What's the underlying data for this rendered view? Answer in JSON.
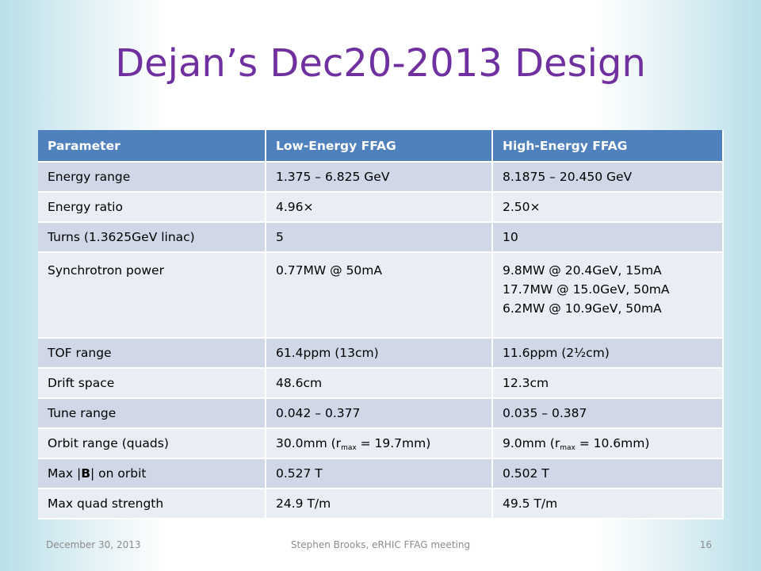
{
  "title": "Dejan’s Dec20-2013 Design",
  "table": {
    "headers": [
      "Parameter",
      "Low-Energy FFAG",
      "High-Energy FFAG"
    ],
    "rows": {
      "energy_range": {
        "param": "Energy range",
        "low": "1.375 – 6.825 GeV",
        "high": "8.1875 – 20.450 GeV"
      },
      "energy_ratio": {
        "param": "Energy ratio",
        "low": "4.96×",
        "high": "2.50×"
      },
      "turns": {
        "param": "Turns (1.3625GeV linac)",
        "low": "5",
        "high": "10"
      },
      "synchrotron_power": {
        "param": "Synchrotron power",
        "low": "0.77MW @ 50mA",
        "high": [
          "9.8MW @ 20.4GeV, 15mA",
          "17.7MW @ 15.0GeV, 50mA",
          "6.2MW @ 10.9GeV, 50mA"
        ]
      },
      "tof_range": {
        "param": "TOF range",
        "low": "61.4ppm (13cm)",
        "high": "11.6ppm (2½cm)"
      },
      "drift_space": {
        "param": "Drift space",
        "low": "48.6cm",
        "high": "12.3cm"
      },
      "tune_range": {
        "param": "Tune range",
        "low": "0.042 – 0.377",
        "high": "0.035 – 0.387"
      },
      "orbit_range": {
        "param": "Orbit range (quads)",
        "low": {
          "pre": "30.0mm (r",
          "sub": "max",
          "post": " = 19.7mm)"
        },
        "high": {
          "pre": "9.0mm (r",
          "sub": "max",
          "post": " = 10.6mm)"
        }
      },
      "max_b": {
        "param_pre": "Max |",
        "param_bold": "B",
        "param_post": "| on orbit",
        "low": "0.527 T",
        "high": "0.502 T"
      },
      "max_quad": {
        "param": "Max quad strength",
        "low": "24.9 T/m",
        "high": "49.5 T/m"
      }
    }
  },
  "footer": {
    "date": "December 30, 2013",
    "center": "Stephen Brooks, eRHIC FFAG meeting",
    "page": "16"
  },
  "colors": {
    "title": "#7030a0",
    "header_bg": "#4f81bd",
    "row_odd": "#d0d8e8",
    "row_even": "#e9edf4"
  }
}
